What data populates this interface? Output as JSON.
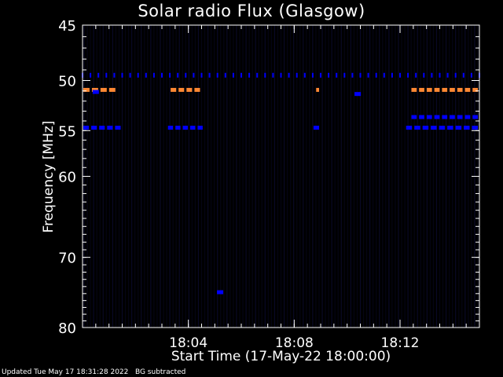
{
  "chart_data": {
    "type": "heatmap",
    "title": "Solar radio Flux (Glasgow)",
    "xlabel": "Start Time (17-May-22 18:00:00)",
    "ylabel": "Frequency [MHz]",
    "footer": "Updated Tue May 17 18:31:28 2022   BG subtracted",
    "x_range_minutes": [
      0,
      15
    ],
    "y_range_mhz": [
      45,
      80
    ],
    "y_scale": "log",
    "x_ticks": [
      {
        "minute": 4,
        "label": "18:04"
      },
      {
        "minute": 8,
        "label": "18:08"
      },
      {
        "minute": 12,
        "label": "18:12"
      }
    ],
    "y_ticks": [
      {
        "mhz": 45,
        "label": "45"
      },
      {
        "mhz": 50,
        "label": "50"
      },
      {
        "mhz": 55,
        "label": "55"
      },
      {
        "mhz": 60,
        "label": "60"
      },
      {
        "mhz": 70,
        "label": "70"
      },
      {
        "mhz": 80,
        "label": "80"
      }
    ],
    "colors": {
      "background": "#000000",
      "noise": "#0a0a2a",
      "weak": "#0000ff",
      "strong": "#ff8833",
      "axes": "#ffffff"
    },
    "features": [
      {
        "kind": "dotted-line",
        "mhz": 49.5,
        "from_min": 0,
        "to_min": 15,
        "level": "weak"
      },
      {
        "kind": "segment",
        "mhz": 50.9,
        "from_min": 0.0,
        "to_min": 1.3,
        "level": "strong"
      },
      {
        "kind": "segment",
        "mhz": 50.9,
        "from_min": 3.3,
        "to_min": 4.5,
        "level": "strong"
      },
      {
        "kind": "segment",
        "mhz": 50.9,
        "from_min": 8.8,
        "to_min": 9.0,
        "level": "strong"
      },
      {
        "kind": "segment",
        "mhz": 50.9,
        "from_min": 12.4,
        "to_min": 15.0,
        "level": "strong"
      },
      {
        "kind": "segment",
        "mhz": 54.7,
        "from_min": 0.0,
        "to_min": 1.5,
        "level": "weak"
      },
      {
        "kind": "segment",
        "mhz": 54.7,
        "from_min": 3.2,
        "to_min": 4.6,
        "level": "weak"
      },
      {
        "kind": "segment",
        "mhz": 54.7,
        "from_min": 8.7,
        "to_min": 9.0,
        "level": "weak"
      },
      {
        "kind": "segment",
        "mhz": 54.7,
        "from_min": 12.2,
        "to_min": 15.0,
        "level": "weak"
      },
      {
        "kind": "segment",
        "mhz": 53.6,
        "from_min": 12.4,
        "to_min": 15.0,
        "level": "weak"
      },
      {
        "kind": "spot",
        "mhz": 51.3,
        "minute": 10.4,
        "level": "weak"
      },
      {
        "kind": "spot",
        "mhz": 74.8,
        "minute": 5.2,
        "level": "weak"
      },
      {
        "kind": "spot",
        "mhz": 51.1,
        "minute": 0.5,
        "level": "weak"
      }
    ]
  }
}
